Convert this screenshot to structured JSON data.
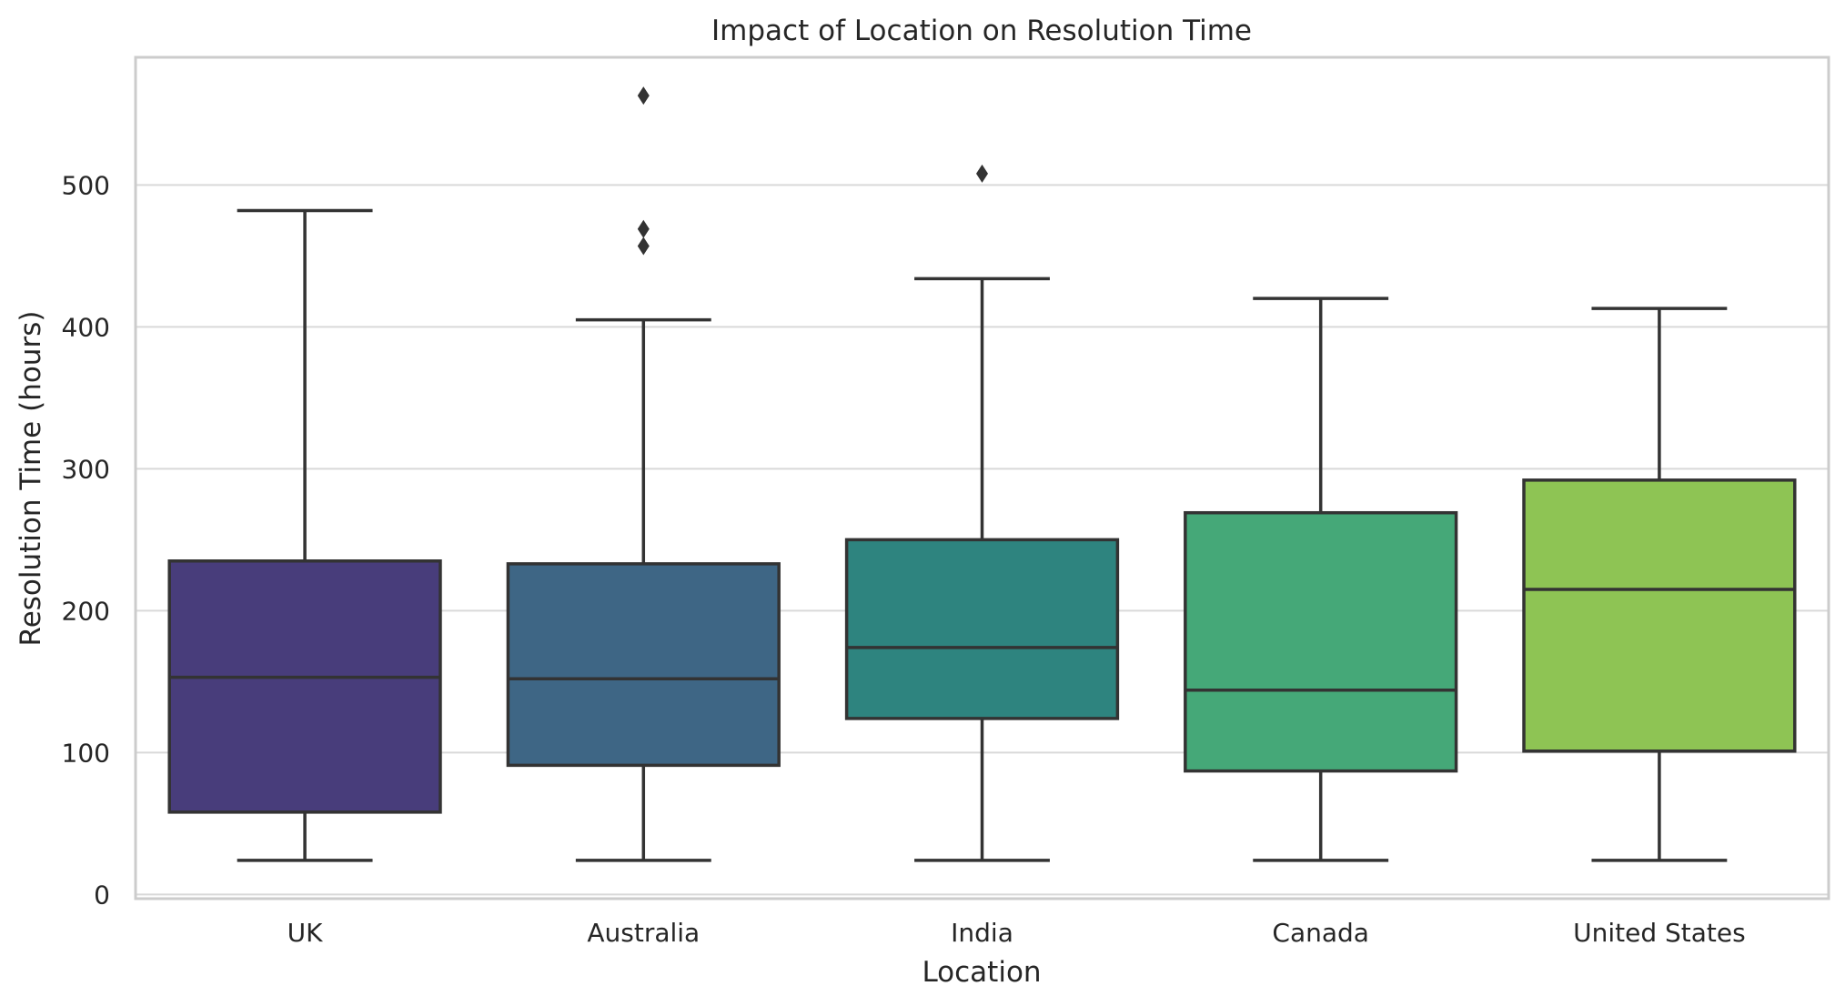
{
  "chart_data": {
    "type": "box",
    "title": "Impact of Location on Resolution Time",
    "xlabel": "Location",
    "ylabel": "Resolution Time (hours)",
    "ylim": [
      -3,
      590
    ],
    "yticks": [
      0,
      100,
      200,
      300,
      400,
      500
    ],
    "grid": true,
    "categories": [
      "UK",
      "Australia",
      "India",
      "Canada",
      "United States"
    ],
    "colors": [
      "#483d7b",
      "#3e6685",
      "#2e847f",
      "#45a878",
      "#8ec454"
    ],
    "boxes": [
      {
        "category": "UK",
        "whisker_low": 24,
        "q1": 58,
        "median": 153,
        "q3": 235,
        "whisker_high": 482,
        "outliers": []
      },
      {
        "category": "Australia",
        "whisker_low": 24,
        "q1": 91,
        "median": 152,
        "q3": 233,
        "whisker_high": 405,
        "outliers": [
          563,
          469,
          457
        ]
      },
      {
        "category": "India",
        "whisker_low": 24,
        "q1": 124,
        "median": 174,
        "q3": 250,
        "whisker_high": 434,
        "outliers": [
          508
        ]
      },
      {
        "category": "Canada",
        "whisker_low": 24,
        "q1": 87,
        "median": 144,
        "q3": 269,
        "whisker_high": 420,
        "outliers": []
      },
      {
        "category": "United States",
        "whisker_low": 24,
        "q1": 101,
        "median": 215,
        "q3": 292,
        "whisker_high": 413,
        "outliers": []
      }
    ]
  }
}
